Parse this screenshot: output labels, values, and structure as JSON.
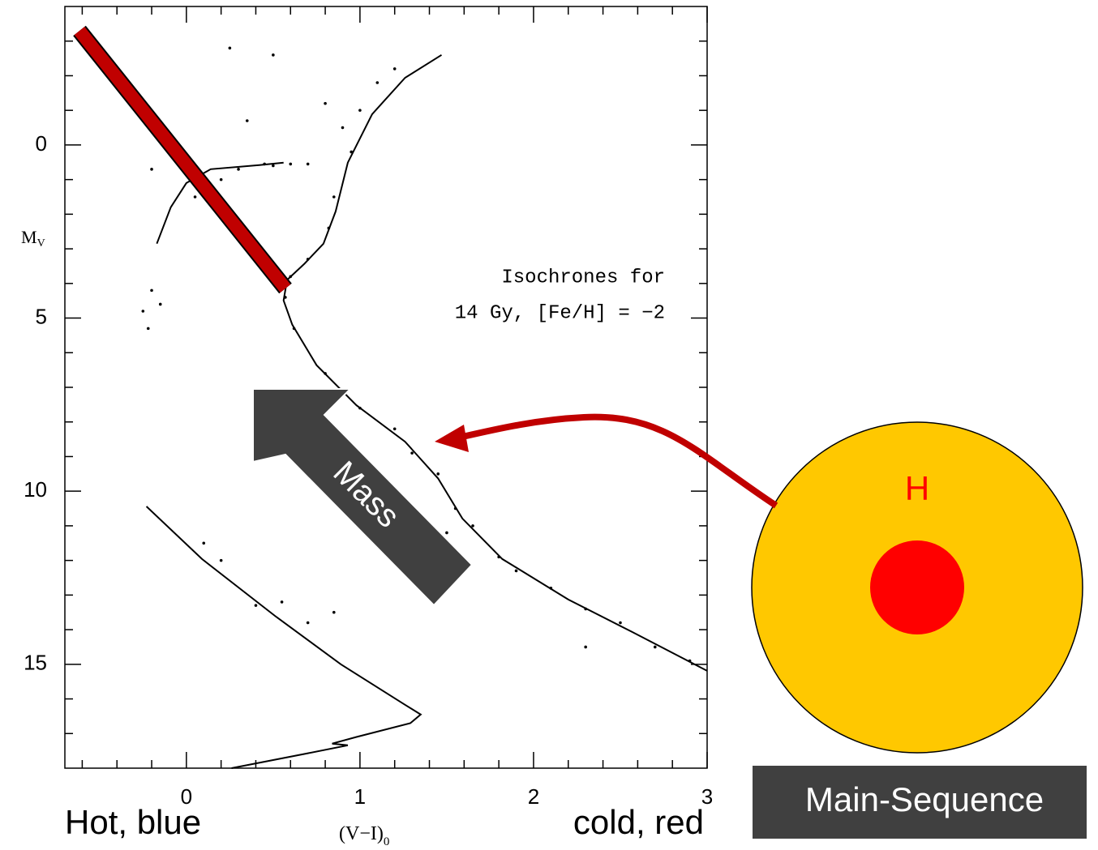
{
  "chart_data": {
    "type": "line",
    "y_label": "M",
    "y_label_subscript": "V",
    "x_label": "(V−I)",
    "x_label_subscript": "0",
    "annotations": [
      "Isochrones for",
      "14 Gy, [Fe/H] = −2"
    ],
    "x_left_note": "Hot, blue",
    "x_right_note": "cold, red",
    "arrow_label": "Mass",
    "core_label": "H",
    "box_label": "Main-Sequence",
    "xlim": [
      -0.7,
      3
    ],
    "ylim": [
      -4,
      18
    ],
    "y_inverted": true,
    "xticks": [
      0,
      1,
      2,
      3
    ],
    "yticks": [
      0,
      5,
      10,
      15
    ],
    "xminor_ticks": [
      -0.6,
      -0.4,
      -0.2,
      0.2,
      0.4,
      0.6,
      0.8,
      1.2,
      1.4,
      1.6,
      1.8,
      2.2,
      2.4,
      2.6,
      2.8
    ],
    "yminor_ticks": [
      -3,
      -2,
      -1,
      1,
      2,
      3,
      4,
      6,
      7,
      8,
      9,
      11,
      12,
      13,
      14,
      16,
      17
    ],
    "series": [
      {
        "kind": "line",
        "color": "#000000",
        "x": [
          1.47,
          1.26,
          1.07,
          0.93,
          0.86,
          0.79,
          0.68,
          0.58,
          0.56,
          0.61,
          0.75,
          0.98,
          1.26,
          1.45,
          1.59,
          1.82,
          2.2,
          2.57,
          3.0
        ],
        "values": [
          -2.6,
          -1.94,
          -0.89,
          0.51,
          1.92,
          2.85,
          3.43,
          3.9,
          4.49,
          5.19,
          6.36,
          7.52,
          8.57,
          9.63,
          10.79,
          11.96,
          13.13,
          14.07,
          15.19
        ]
      },
      {
        "kind": "line",
        "color": "#000000",
        "x": [
          -0.17,
          -0.09,
          0,
          0.14,
          0.42,
          0.56
        ],
        "values": [
          2.85,
          1.8,
          1.1,
          0.7,
          0.58,
          0.51
        ]
      },
      {
        "kind": "line",
        "color": "#000000",
        "x": [
          -0.23,
          0.09,
          0.51,
          0.89,
          1.26,
          1.35,
          1.29,
          0.98,
          0.84,
          0.93,
          0.7,
          0.26
        ],
        "values": [
          10.44,
          11.96,
          13.6,
          15.0,
          16.17,
          16.45,
          16.7,
          17.1,
          17.29,
          17.34,
          17.57,
          18.0
        ]
      },
      {
        "kind": "scatter",
        "color": "#000000",
        "x": [
          0.2,
          0.3,
          0.45,
          0.5,
          0.6,
          0.7,
          0.15,
          0.05,
          -0.2,
          -0.2,
          -0.25,
          -0.22,
          -0.15,
          0.8,
          0.9,
          0.95,
          1.0,
          1.1,
          1.2,
          0.85,
          0.82,
          0.7,
          0.6,
          0.57,
          0.62,
          0.8,
          1.0,
          1.2,
          1.3,
          1.45,
          1.55,
          1.65,
          1.8,
          1.9,
          2.1,
          2.3,
          2.5,
          2.7,
          2.9,
          0.1,
          0.2,
          0.4,
          0.55,
          0.7,
          0.85,
          0.25,
          0.5,
          0.35,
          1.5,
          2.3
        ],
        "values": [
          1.0,
          0.7,
          0.55,
          0.6,
          0.55,
          0.55,
          1.3,
          1.5,
          0.7,
          4.2,
          4.8,
          5.3,
          4.6,
          -1.2,
          -0.5,
          0.2,
          -1.0,
          -1.8,
          -2.2,
          1.5,
          2.4,
          3.3,
          3.8,
          4.4,
          5.3,
          6.6,
          7.6,
          8.2,
          8.9,
          9.5,
          10.5,
          11.0,
          11.9,
          12.3,
          12.8,
          13.4,
          13.8,
          14.5,
          14.9,
          11.5,
          12.0,
          13.3,
          13.2,
          13.8,
          13.5,
          -2.8,
          -2.6,
          -0.7,
          11.2,
          14.5
        ]
      }
    ]
  }
}
